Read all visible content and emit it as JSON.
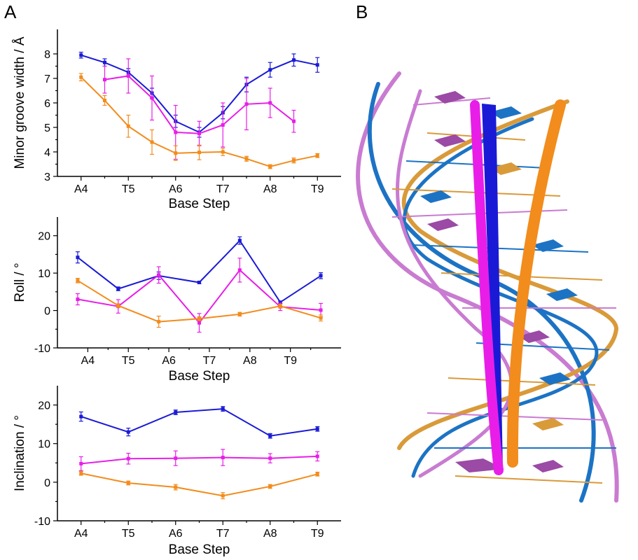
{
  "panel_labels": [
    "A",
    "B"
  ],
  "colors": {
    "blue": "#1a1ad6",
    "magenta": "#e81ee8",
    "orange": "#f28c1c",
    "axis": "#000000"
  },
  "structure_image": {
    "icon": "dna-double-helix-cartoon-icon",
    "colors": [
      "#e81ee8",
      "#1a1ad6",
      "#f28c1c",
      "#1c73c4",
      "#c97bd1",
      "#d99a3a"
    ]
  },
  "chart_data": [
    {
      "type": "line",
      "ylabel": "Minor groove width / Å",
      "xlabel": "Base Step",
      "ylim": [
        3,
        9
      ],
      "yticks": [
        3,
        4,
        5,
        6,
        7,
        8
      ],
      "xlim": [
        0,
        10
      ],
      "xticks": [
        {
          "x": 1,
          "label": "A4"
        },
        {
          "x": 3,
          "label": "T5"
        },
        {
          "x": 5,
          "label": "A6"
        },
        {
          "x": 7,
          "label": "T7"
        },
        {
          "x": 9,
          "label": "A8"
        },
        {
          "x": 11,
          "label": "T9"
        }
      ],
      "series": [
        {
          "color": "blue",
          "x": [
            1,
            2,
            3,
            4,
            5,
            6,
            7,
            8,
            9,
            10,
            11
          ],
          "y": [
            7.95,
            7.65,
            7.25,
            6.4,
            5.25,
            4.8,
            5.6,
            6.75,
            7.35,
            7.75,
            7.55
          ],
          "err": [
            0.12,
            0.15,
            0.15,
            0.2,
            0.25,
            0.2,
            0.25,
            0.3,
            0.3,
            0.25,
            0.3
          ]
        },
        {
          "color": "magenta",
          "x": [
            2,
            3,
            4,
            5,
            6,
            7,
            8,
            9,
            10
          ],
          "y": [
            6.95,
            7.1,
            6.2,
            4.8,
            4.75,
            5.1,
            5.95,
            6.0,
            5.25
          ],
          "err": [
            0.55,
            0.7,
            0.9,
            1.1,
            0.5,
            0.9,
            1.05,
            0.6,
            0.45
          ]
        },
        {
          "color": "orange",
          "x": [
            1,
            2,
            3,
            4,
            5,
            6,
            7,
            8,
            9,
            10,
            11
          ],
          "y": [
            7.05,
            6.1,
            5.05,
            4.4,
            3.95,
            3.98,
            4.0,
            3.72,
            3.4,
            3.65,
            3.85
          ],
          "err": [
            0.15,
            0.2,
            0.45,
            0.5,
            0.3,
            0.3,
            0.15,
            0.1,
            0.08,
            0.1,
            0.08
          ]
        }
      ]
    },
    {
      "type": "line",
      "ylabel": "Roll / °",
      "xlabel": "Base Step",
      "ylim": [
        -10,
        25
      ],
      "yticks": [
        -10,
        0,
        10,
        20
      ],
      "xlim": [
        0,
        10
      ],
      "xticks": [
        {
          "x": 1.5,
          "label": "A4"
        },
        {
          "x": 3.5,
          "label": "T5"
        },
        {
          "x": 5.5,
          "label": "A6"
        },
        {
          "x": 7.5,
          "label": "T7"
        },
        {
          "x": 9.5,
          "label": "A8"
        },
        {
          "x": 11.5,
          "label": "T9"
        }
      ],
      "series": [
        {
          "color": "blue",
          "x": [
            1,
            3,
            5,
            7,
            9,
            11,
            13
          ],
          "y": [
            14.2,
            5.8,
            9.3,
            7.5,
            18.7,
            2.2,
            9.3
          ],
          "err": [
            1.5,
            0.5,
            1.0,
            0.3,
            1.0,
            0.3,
            0.8
          ]
        },
        {
          "color": "magenta",
          "x": [
            1,
            3,
            5,
            7,
            9,
            11,
            13
          ],
          "y": [
            3.0,
            1.1,
            9.5,
            -3.3,
            10.8,
            1.0,
            0.1
          ],
          "err": [
            1.5,
            1.8,
            2.2,
            2.5,
            3.2,
            1.0,
            1.8
          ]
        },
        {
          "color": "orange",
          "x": [
            1,
            3,
            5,
            7,
            9,
            11,
            13
          ],
          "y": [
            8.0,
            1.3,
            -3.0,
            -2.2,
            -1.0,
            1.2,
            -2.0
          ],
          "err": [
            0.6,
            0.5,
            1.5,
            0.5,
            0.5,
            0.5,
            0.8
          ]
        }
      ]
    },
    {
      "type": "line",
      "ylabel": "Inclination / °",
      "xlabel": "Base Step",
      "ylim": [
        -10,
        25
      ],
      "yticks": [
        -10,
        0,
        10,
        20
      ],
      "xlim": [
        0,
        10
      ],
      "xticks": [
        {
          "x": 1,
          "label": "A4"
        },
        {
          "x": 3,
          "label": "T5"
        },
        {
          "x": 5,
          "label": "A6"
        },
        {
          "x": 7,
          "label": "T7"
        },
        {
          "x": 9,
          "label": "A8"
        },
        {
          "x": 11,
          "label": "T9"
        }
      ],
      "series": [
        {
          "color": "blue",
          "x": [
            1,
            3,
            5,
            7,
            9,
            11
          ],
          "y": [
            17.0,
            13.0,
            18.1,
            19.0,
            12.0,
            13.8
          ],
          "err": [
            1.2,
            1.0,
            0.6,
            0.6,
            0.6,
            0.6
          ]
        },
        {
          "color": "magenta",
          "x": [
            1,
            3,
            5,
            7,
            9,
            11
          ],
          "y": [
            4.8,
            6.1,
            6.2,
            6.4,
            6.2,
            6.7
          ],
          "err": [
            1.8,
            1.4,
            1.9,
            2.1,
            1.2,
            1.2
          ]
        },
        {
          "color": "orange",
          "x": [
            1,
            3,
            5,
            7,
            9,
            11
          ],
          "y": [
            2.3,
            -0.2,
            -1.3,
            -3.5,
            -1.1,
            2.1
          ],
          "err": [
            0.5,
            0.5,
            0.7,
            0.8,
            0.5,
            0.5
          ]
        }
      ]
    }
  ]
}
